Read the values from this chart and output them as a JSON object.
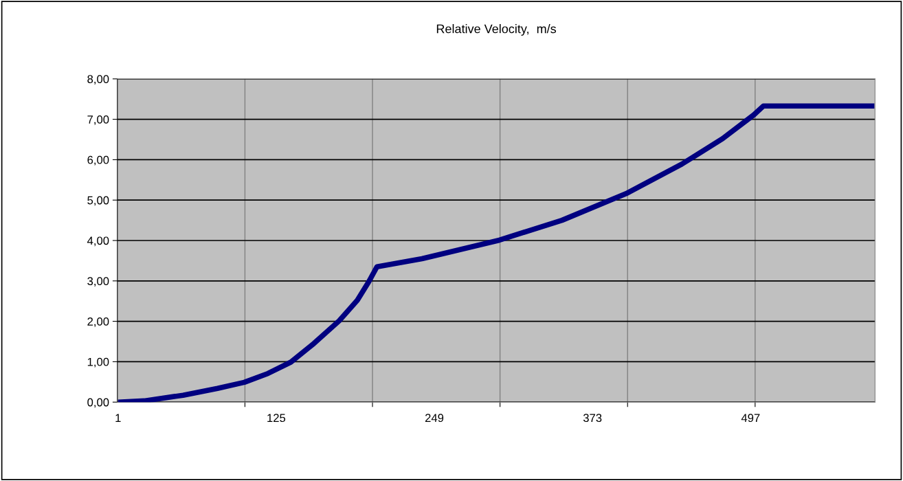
{
  "chart_data": {
    "type": "line",
    "title": "Relative Velocity,  m/s",
    "series": [
      {
        "color": "#000080",
        "x": [
          1,
          21.5,
          52,
          79,
          100,
          118.6,
          136.5,
          154.5,
          174.3,
          188.6,
          197.6,
          204,
          239.3,
          300,
          349,
          399.3,
          443,
          475,
          499.5,
          507,
          594
        ],
        "values": [
          0,
          0.03,
          0.17,
          0.34,
          0.49,
          0.71,
          0.99,
          1.45,
          2.01,
          2.52,
          2.98,
          3.35,
          3.55,
          4.01,
          4.5,
          5.16,
          5.89,
          6.52,
          7.11,
          7.33,
          7.33
        ]
      }
    ],
    "xlim": [
      0.5,
      594.5
    ],
    "xticks": [
      {
        "value": 1,
        "label": "1"
      },
      {
        "value": 125,
        "label": "125"
      },
      {
        "value": 249,
        "label": "249"
      },
      {
        "value": 373,
        "label": "373"
      },
      {
        "value": 497,
        "label": "497"
      },
      {
        "value": 100.5,
        "label": null
      },
      {
        "value": 200.5,
        "label": null
      },
      {
        "value": 300.5,
        "label": null
      },
      {
        "value": 400.5,
        "label": null
      },
      {
        "value": 500.5,
        "label": null
      }
    ],
    "ylim": [
      0,
      8
    ],
    "yticks": [
      {
        "value": 0,
        "label": "0,00"
      },
      {
        "value": 1,
        "label": "1,00"
      },
      {
        "value": 2,
        "label": "2,00"
      },
      {
        "value": 3,
        "label": "3,00"
      },
      {
        "value": 4,
        "label": "4,00"
      },
      {
        "value": 5,
        "label": "5,00"
      },
      {
        "value": 6,
        "label": "6,00"
      },
      {
        "value": 7,
        "label": "7,00"
      },
      {
        "value": 8,
        "label": "8,00"
      }
    ],
    "grid": true,
    "marker": "none",
    "line_style": "solid"
  }
}
